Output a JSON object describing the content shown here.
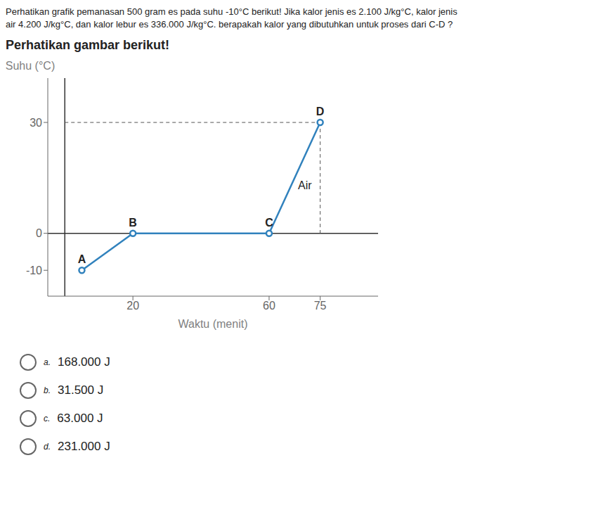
{
  "chart_data": {
    "type": "line",
    "title": "Perhatikan gambar berikut!",
    "subtitle": [
      "Perhatikan grafik pemanasan 500 gram es pada suhu -10°C berikut! Jika kalor jenis es 2.100 J/kg°C, kalor jenis",
      "air 4.200 J/kg°C, dan kalor lebur es 336.000 J/kg°C. berapakah kalor yang dibutuhkan untuk proses dari C-D ?"
    ],
    "x": [
      5,
      20,
      60,
      75
    ],
    "values": [
      -10,
      0,
      0,
      30
    ],
    "xlabel": "Waktu (menit)",
    "ylabel": "Suhu (°C)",
    "xlim": [
      -5,
      92
    ],
    "ylim": [
      -17,
      42
    ],
    "xticks": [
      20,
      60,
      75
    ],
    "yticks": [
      -10,
      0,
      30
    ],
    "grid": false,
    "marker": "o",
    "annotations": [
      {
        "text": "A",
        "x": 5,
        "y": -10
      },
      {
        "text": "B",
        "x": 20,
        "y": 0
      },
      {
        "text": "C",
        "x": 60,
        "y": 0
      },
      {
        "text": "D",
        "x": 75,
        "y": 30
      },
      {
        "text": "Air",
        "x": 66,
        "y": 13
      }
    ],
    "answer_options": [
      {
        "letter": "a.",
        "text": "168.000 J"
      },
      {
        "letter": "b.",
        "text": "31.500 J"
      },
      {
        "letter": "c.",
        "text": "63.000 J"
      },
      {
        "letter": "d.",
        "text": "231.000 J"
      }
    ]
  }
}
